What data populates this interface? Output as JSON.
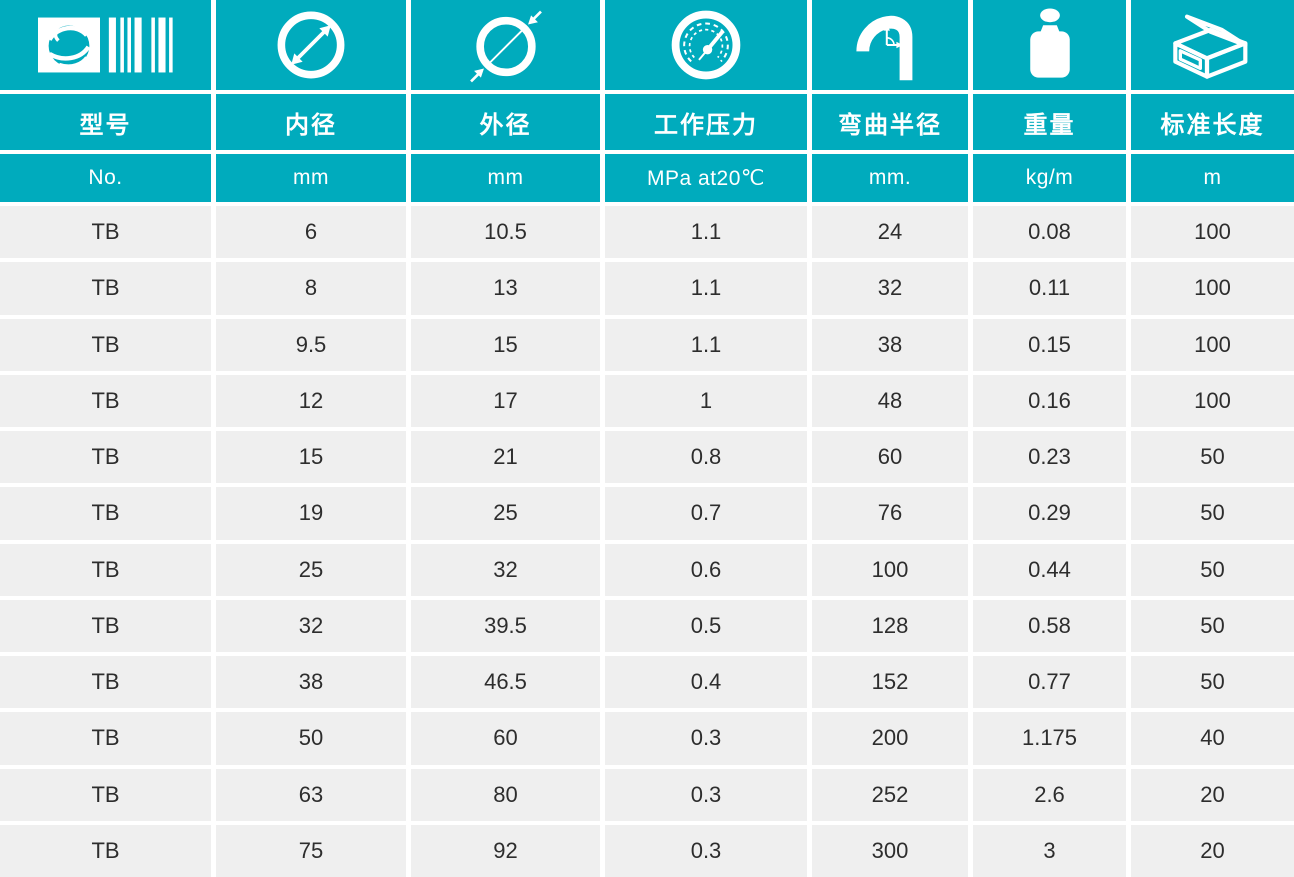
{
  "theme": {
    "teal": "#00abbd",
    "row_background": "#efefef",
    "divider_white": "#ffffff",
    "header_text_color": "#ffffff",
    "data_text_color": "#2d2d2d"
  },
  "table": {
    "columns": [
      {
        "id": "model",
        "icon": "logo-barcode-icon",
        "label": "型号",
        "unit": "No."
      },
      {
        "id": "inner-diameter",
        "icon": "inner-diameter-icon",
        "label": "内径",
        "unit": "mm"
      },
      {
        "id": "outer-diameter",
        "icon": "outer-diameter-icon",
        "label": "外径",
        "unit": "mm"
      },
      {
        "id": "working-pressure",
        "icon": "pressure-gauge-icon",
        "label": "工作压力",
        "unit": "MPa at20℃"
      },
      {
        "id": "bend-radius",
        "icon": "bend-radius-icon",
        "label": "弯曲半径",
        "unit": "mm."
      },
      {
        "id": "weight",
        "icon": "weight-icon",
        "label": "重量",
        "unit": "kg/m"
      },
      {
        "id": "standard-length",
        "icon": "package-box-icon",
        "label": "标准长度",
        "unit": "m"
      }
    ],
    "rows": [
      [
        "TB",
        "6",
        "10.5",
        "1.1",
        "24",
        "0.08",
        "100"
      ],
      [
        "TB",
        "8",
        "13",
        "1.1",
        "32",
        "0.11",
        "100"
      ],
      [
        "TB",
        "9.5",
        "15",
        "1.1",
        "38",
        "0.15",
        "100"
      ],
      [
        "TB",
        "12",
        "17",
        "1",
        "48",
        "0.16",
        "100"
      ],
      [
        "TB",
        "15",
        "21",
        "0.8",
        "60",
        "0.23",
        "50"
      ],
      [
        "TB",
        "19",
        "25",
        "0.7",
        "76",
        "0.29",
        "50"
      ],
      [
        "TB",
        "25",
        "32",
        "0.6",
        "100",
        "0.44",
        "50"
      ],
      [
        "TB",
        "32",
        "39.5",
        "0.5",
        "128",
        "0.58",
        "50"
      ],
      [
        "TB",
        "38",
        "46.5",
        "0.4",
        "152",
        "0.77",
        "50"
      ],
      [
        "TB",
        "50",
        "60",
        "0.3",
        "200",
        "1.175",
        "40"
      ],
      [
        "TB",
        "63",
        "80",
        "0.3",
        "252",
        "2.6",
        "20"
      ],
      [
        "TB",
        "75",
        "92",
        "0.3",
        "300",
        "3",
        "20"
      ]
    ]
  }
}
